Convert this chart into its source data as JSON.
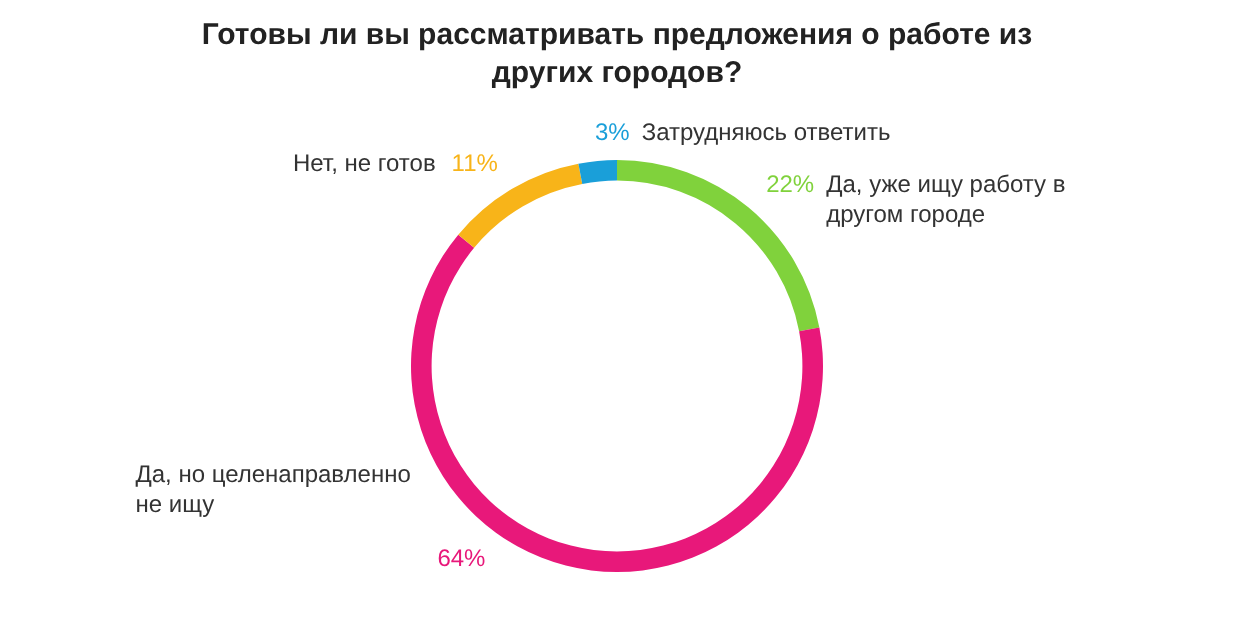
{
  "chart_data": {
    "type": "donut",
    "title": "Готовы ли вы рассматривать предложения о работе из других городов?",
    "categories": [
      "Да, уже ищу работу в другом городе",
      "Да, но целенаправленно не ищу",
      "Нет, не готов",
      "Затрудняюсь ответить"
    ],
    "values": [
      22,
      64,
      11,
      3
    ],
    "colors": [
      "#80d23c",
      "#e8187a",
      "#f8b419",
      "#1a9fd9"
    ],
    "value_labels": [
      "22%",
      "64%",
      "11%",
      "3%"
    ],
    "legend": false
  }
}
